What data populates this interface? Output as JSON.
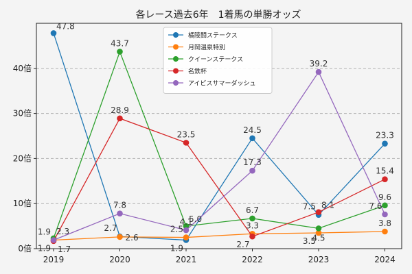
{
  "chart_data": {
    "type": "line",
    "title": "各レース過去6年　1着馬の単勝オッズ",
    "xlabel": "",
    "ylabel": "",
    "categories": [
      "2019",
      "2020",
      "2021",
      "2022",
      "2023",
      "2024"
    ],
    "ylim": [
      0,
      50
    ],
    "yticks": [
      0,
      10,
      20,
      30,
      40
    ],
    "ytick_labels": [
      "0倍",
      "10倍",
      "20倍",
      "30倍",
      "40倍"
    ],
    "grid": true,
    "legend_position": "top-center",
    "series": [
      {
        "name": "橘陵闘ステークス",
        "color": "#1f77b4",
        "values": [
          47.8,
          2.7,
          1.9,
          24.5,
          7.5,
          23.3
        ]
      },
      {
        "name": "月岡温泉特別",
        "color": "#ff7f0e",
        "values": [
          1.9,
          2.6,
          2.5,
          3.3,
          3.5,
          3.8
        ]
      },
      {
        "name": "クイーンステークス",
        "color": "#2ca02c",
        "values": [
          2.3,
          43.7,
          5.0,
          6.7,
          4.5,
          9.6
        ]
      },
      {
        "name": "名鉄杯",
        "color": "#d62728",
        "values": [
          1.7,
          28.9,
          23.5,
          2.7,
          8.1,
          15.4
        ]
      },
      {
        "name": "アイビスサマーダッシュ",
        "color": "#9467bd",
        "values": [
          1.9,
          7.8,
          4.1,
          17.3,
          39.2,
          7.6
        ]
      }
    ],
    "data_labels": [
      {
        "series": 0,
        "index": 0,
        "text": "47.8",
        "pos": "ur"
      },
      {
        "series": 0,
        "index": 1,
        "text": "2.7",
        "pos": "ul"
      },
      {
        "series": 0,
        "index": 2,
        "text": "1.9",
        "pos": "dl"
      },
      {
        "series": 0,
        "index": 3,
        "text": "24.5",
        "pos": "u"
      },
      {
        "series": 0,
        "index": 4,
        "text": "7.5",
        "pos": "ul"
      },
      {
        "series": 0,
        "index": 5,
        "text": "23.3",
        "pos": "u"
      },
      {
        "series": 1,
        "index": 0,
        "text": "1.9",
        "pos": "dl"
      },
      {
        "series": 1,
        "index": 1,
        "text": "2.6",
        "pos": "r"
      },
      {
        "series": 1,
        "index": 2,
        "text": "2.5",
        "pos": "ul"
      },
      {
        "series": 1,
        "index": 3,
        "text": "3.3",
        "pos": "u"
      },
      {
        "series": 1,
        "index": 4,
        "text": "3.5",
        "pos": "dl"
      },
      {
        "series": 1,
        "index": 5,
        "text": "3.8",
        "pos": "u"
      },
      {
        "series": 2,
        "index": 0,
        "text": "2.3",
        "pos": "ur"
      },
      {
        "series": 2,
        "index": 1,
        "text": "43.7",
        "pos": "u"
      },
      {
        "series": 2,
        "index": 2,
        "text": "5.0",
        "pos": "ur"
      },
      {
        "series": 2,
        "index": 3,
        "text": "6.7",
        "pos": "u"
      },
      {
        "series": 2,
        "index": 4,
        "text": "4.5",
        "pos": "d"
      },
      {
        "series": 2,
        "index": 5,
        "text": "9.6",
        "pos": "u"
      },
      {
        "series": 3,
        "index": 0,
        "text": "1.7",
        "pos": "dr"
      },
      {
        "series": 3,
        "index": 1,
        "text": "28.9",
        "pos": "u"
      },
      {
        "series": 3,
        "index": 2,
        "text": "23.5",
        "pos": "u"
      },
      {
        "series": 3,
        "index": 3,
        "text": "2.7",
        "pos": "dl"
      },
      {
        "series": 3,
        "index": 4,
        "text": "8.1",
        "pos": "ur"
      },
      {
        "series": 3,
        "index": 5,
        "text": "15.4",
        "pos": "u"
      },
      {
        "series": 4,
        "index": 0,
        "text": "1.9",
        "pos": "ul"
      },
      {
        "series": 4,
        "index": 1,
        "text": "7.8",
        "pos": "u"
      },
      {
        "series": 4,
        "index": 2,
        "text": "4.1",
        "pos": "u"
      },
      {
        "series": 4,
        "index": 3,
        "text": "17.3",
        "pos": "u"
      },
      {
        "series": 4,
        "index": 4,
        "text": "39.2",
        "pos": "u"
      },
      {
        "series": 4,
        "index": 5,
        "text": "7.6",
        "pos": "ul"
      }
    ]
  }
}
